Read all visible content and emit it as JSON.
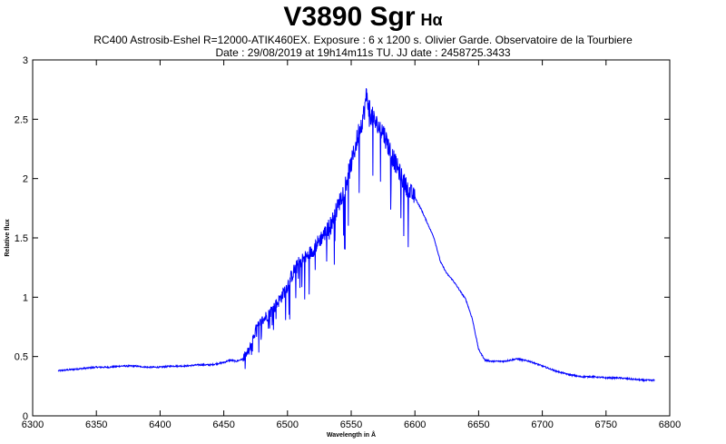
{
  "header": {
    "title": "V3890 Sgr",
    "title_suffix": "Hα",
    "subtitle_line1": "RC400 Astrosib-Eshel R=12000-ATIK460EX. Exposure : 6 x 1200 s. Olivier Garde. Observatoire de la Tourbiere",
    "subtitle_line2": "Date : 29/08/2019 at 19h14m11s TU. JJ date : 2458725.3433"
  },
  "chart_data": {
    "type": "line",
    "xlabel": "Wavelength in Å",
    "ylabel": "Relative flux",
    "xlim": [
      6300,
      6800
    ],
    "ylim": [
      0,
      3
    ],
    "x_ticks": [
      6300,
      6350,
      6400,
      6450,
      6500,
      6550,
      6600,
      6650,
      6700,
      6750,
      6800
    ],
    "y_ticks": [
      0,
      0.5,
      1,
      1.5,
      2,
      2.5,
      3
    ],
    "y_tick_labels": [
      "0",
      "0.5",
      "1",
      "1.5",
      "2",
      "2.5",
      "3"
    ],
    "grid": false,
    "line_color": "#0000ff",
    "series": [
      {
        "x": [
          6320,
          6330,
          6340,
          6350,
          6360,
          6370,
          6380,
          6390,
          6400,
          6410,
          6420,
          6430,
          6440,
          6450,
          6455,
          6460,
          6465,
          6470,
          6475,
          6480,
          6485,
          6490,
          6495,
          6500,
          6505,
          6510,
          6515,
          6520,
          6525,
          6530,
          6535,
          6540,
          6545,
          6550,
          6555,
          6560,
          6562,
          6565,
          6570,
          6575,
          6580,
          6585,
          6590,
          6595,
          6600,
          6605,
          6610,
          6615,
          6620,
          6625,
          6630,
          6635,
          6640,
          6645,
          6650,
          6655,
          6660,
          6670,
          6680,
          6690,
          6700,
          6710,
          6720,
          6730,
          6740,
          6750,
          6760,
          6770,
          6780,
          6788
        ],
        "y": [
          0.38,
          0.39,
          0.4,
          0.41,
          0.41,
          0.42,
          0.42,
          0.41,
          0.41,
          0.42,
          0.42,
          0.43,
          0.43,
          0.45,
          0.47,
          0.46,
          0.48,
          0.55,
          0.72,
          0.8,
          0.86,
          0.92,
          1.0,
          1.1,
          1.22,
          1.3,
          1.34,
          1.4,
          1.48,
          1.55,
          1.64,
          1.78,
          1.94,
          2.12,
          2.35,
          2.55,
          2.7,
          2.55,
          2.45,
          2.4,
          2.25,
          2.12,
          2.0,
          1.9,
          1.84,
          1.74,
          1.62,
          1.5,
          1.3,
          1.2,
          1.14,
          1.06,
          0.98,
          0.82,
          0.56,
          0.47,
          0.46,
          0.46,
          0.48,
          0.46,
          0.42,
          0.38,
          0.35,
          0.33,
          0.33,
          0.32,
          0.32,
          0.31,
          0.3,
          0.3
        ]
      }
    ]
  }
}
